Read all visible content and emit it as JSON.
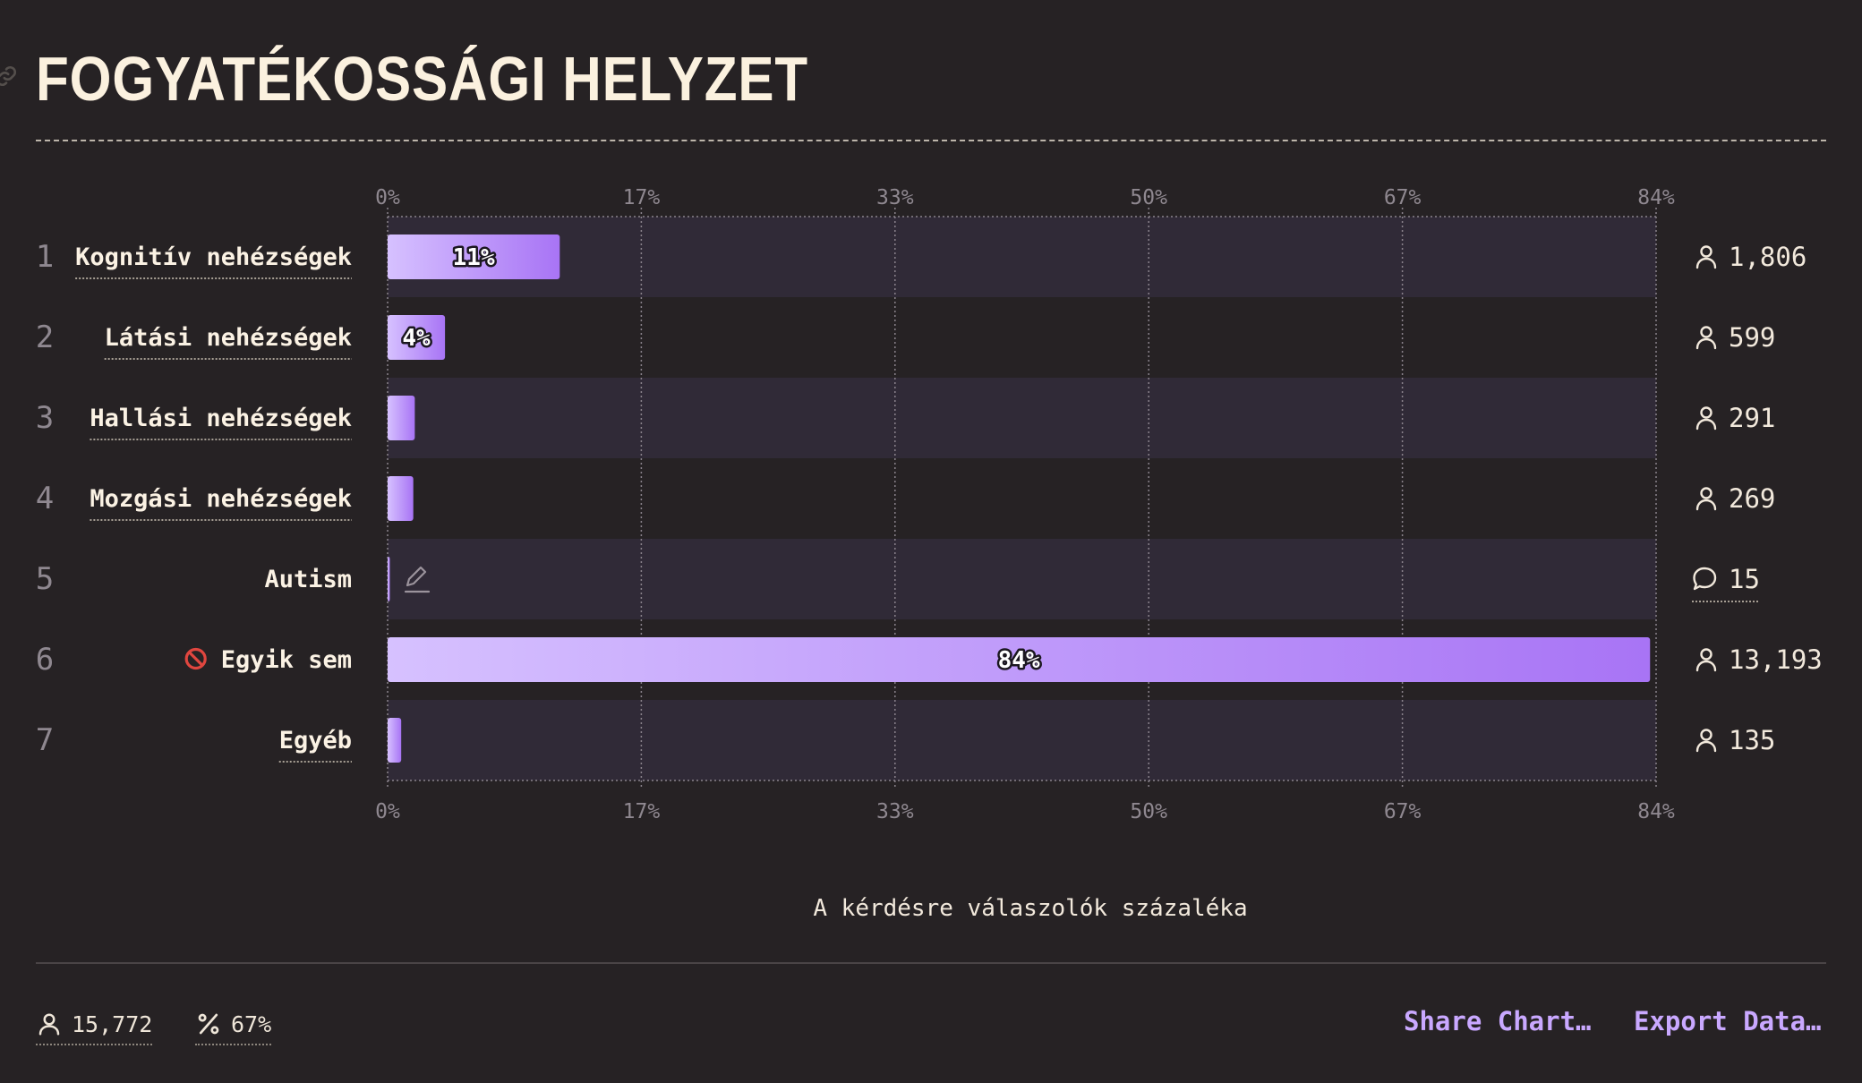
{
  "title": "FOGYATÉKOSSÁGI HELYZET",
  "icons": {
    "link": "link-icon",
    "respondents": "user-icon",
    "comments": "comment-icon",
    "percent": "percent-icon",
    "edit": "pencil-icon",
    "none": "no-entry-icon"
  },
  "colors": {
    "background": "#262224",
    "band": "#302a37",
    "bar_start": "#d6c1ff",
    "bar_end": "#a874f5",
    "accent": "#c9a8ff"
  },
  "chart_data": {
    "type": "bar",
    "orientation": "horizontal",
    "xlim": [
      0,
      84
    ],
    "x_ticks": [
      "0%",
      "17%",
      "33%",
      "50%",
      "67%",
      "84%"
    ],
    "xlabel": "A kérdésre válaszolók százaléka",
    "rows": [
      {
        "rank": "1",
        "label": "Kognitív nehézségek",
        "value": 11.4,
        "value_label": "11%",
        "count": "1,806",
        "count_icon": "user"
      },
      {
        "rank": "2",
        "label": "Látási nehézségek",
        "value": 3.8,
        "value_label": "4%",
        "count": "599",
        "count_icon": "user"
      },
      {
        "rank": "3",
        "label": "Hallási nehézségek",
        "value": 1.8,
        "value_label": "",
        "count": "291",
        "count_icon": "user"
      },
      {
        "rank": "4",
        "label": "Mozgási nehézségek",
        "value": 1.7,
        "value_label": "",
        "count": "269",
        "count_icon": "user"
      },
      {
        "rank": "5",
        "label": "Autism",
        "value": 0.1,
        "value_label": "",
        "count": "15",
        "count_icon": "comment",
        "editable": true
      },
      {
        "rank": "6",
        "label": "Egyik sem",
        "value": 83.6,
        "value_label": "84%",
        "count": "13,193",
        "count_icon": "user",
        "none_icon": true
      },
      {
        "rank": "7",
        "label": "Egyéb",
        "value": 0.9,
        "value_label": "",
        "count": "135",
        "count_icon": "user"
      }
    ]
  },
  "footer": {
    "respondents": "15,772",
    "percent": "67%",
    "share_label": "Share Chart…",
    "export_label": "Export Data…"
  }
}
